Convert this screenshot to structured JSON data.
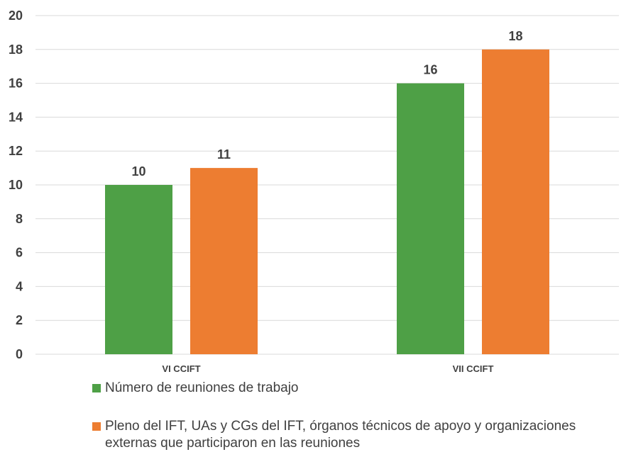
{
  "chart_data": {
    "type": "bar",
    "categories": [
      "VI CCIFT",
      "VII CCIFT"
    ],
    "series": [
      {
        "name": "Número de reuniones de trabajo",
        "values": [
          10,
          16
        ],
        "color": "#4EA046"
      },
      {
        "name": "Pleno del IFT, UAs y CGs del IFT, órganos técnicos de apoyo y organizaciones externas que participaron en las reuniones",
        "values": [
          11,
          18
        ],
        "color": "#ED7D31"
      }
    ],
    "ylim": [
      0,
      20
    ],
    "yticks": [
      0,
      2,
      4,
      6,
      8,
      10,
      12,
      14,
      16,
      18,
      20
    ],
    "grid": true,
    "legend_position": "bottom",
    "data_labels": true,
    "title": "",
    "xlabel": "",
    "ylabel": ""
  }
}
